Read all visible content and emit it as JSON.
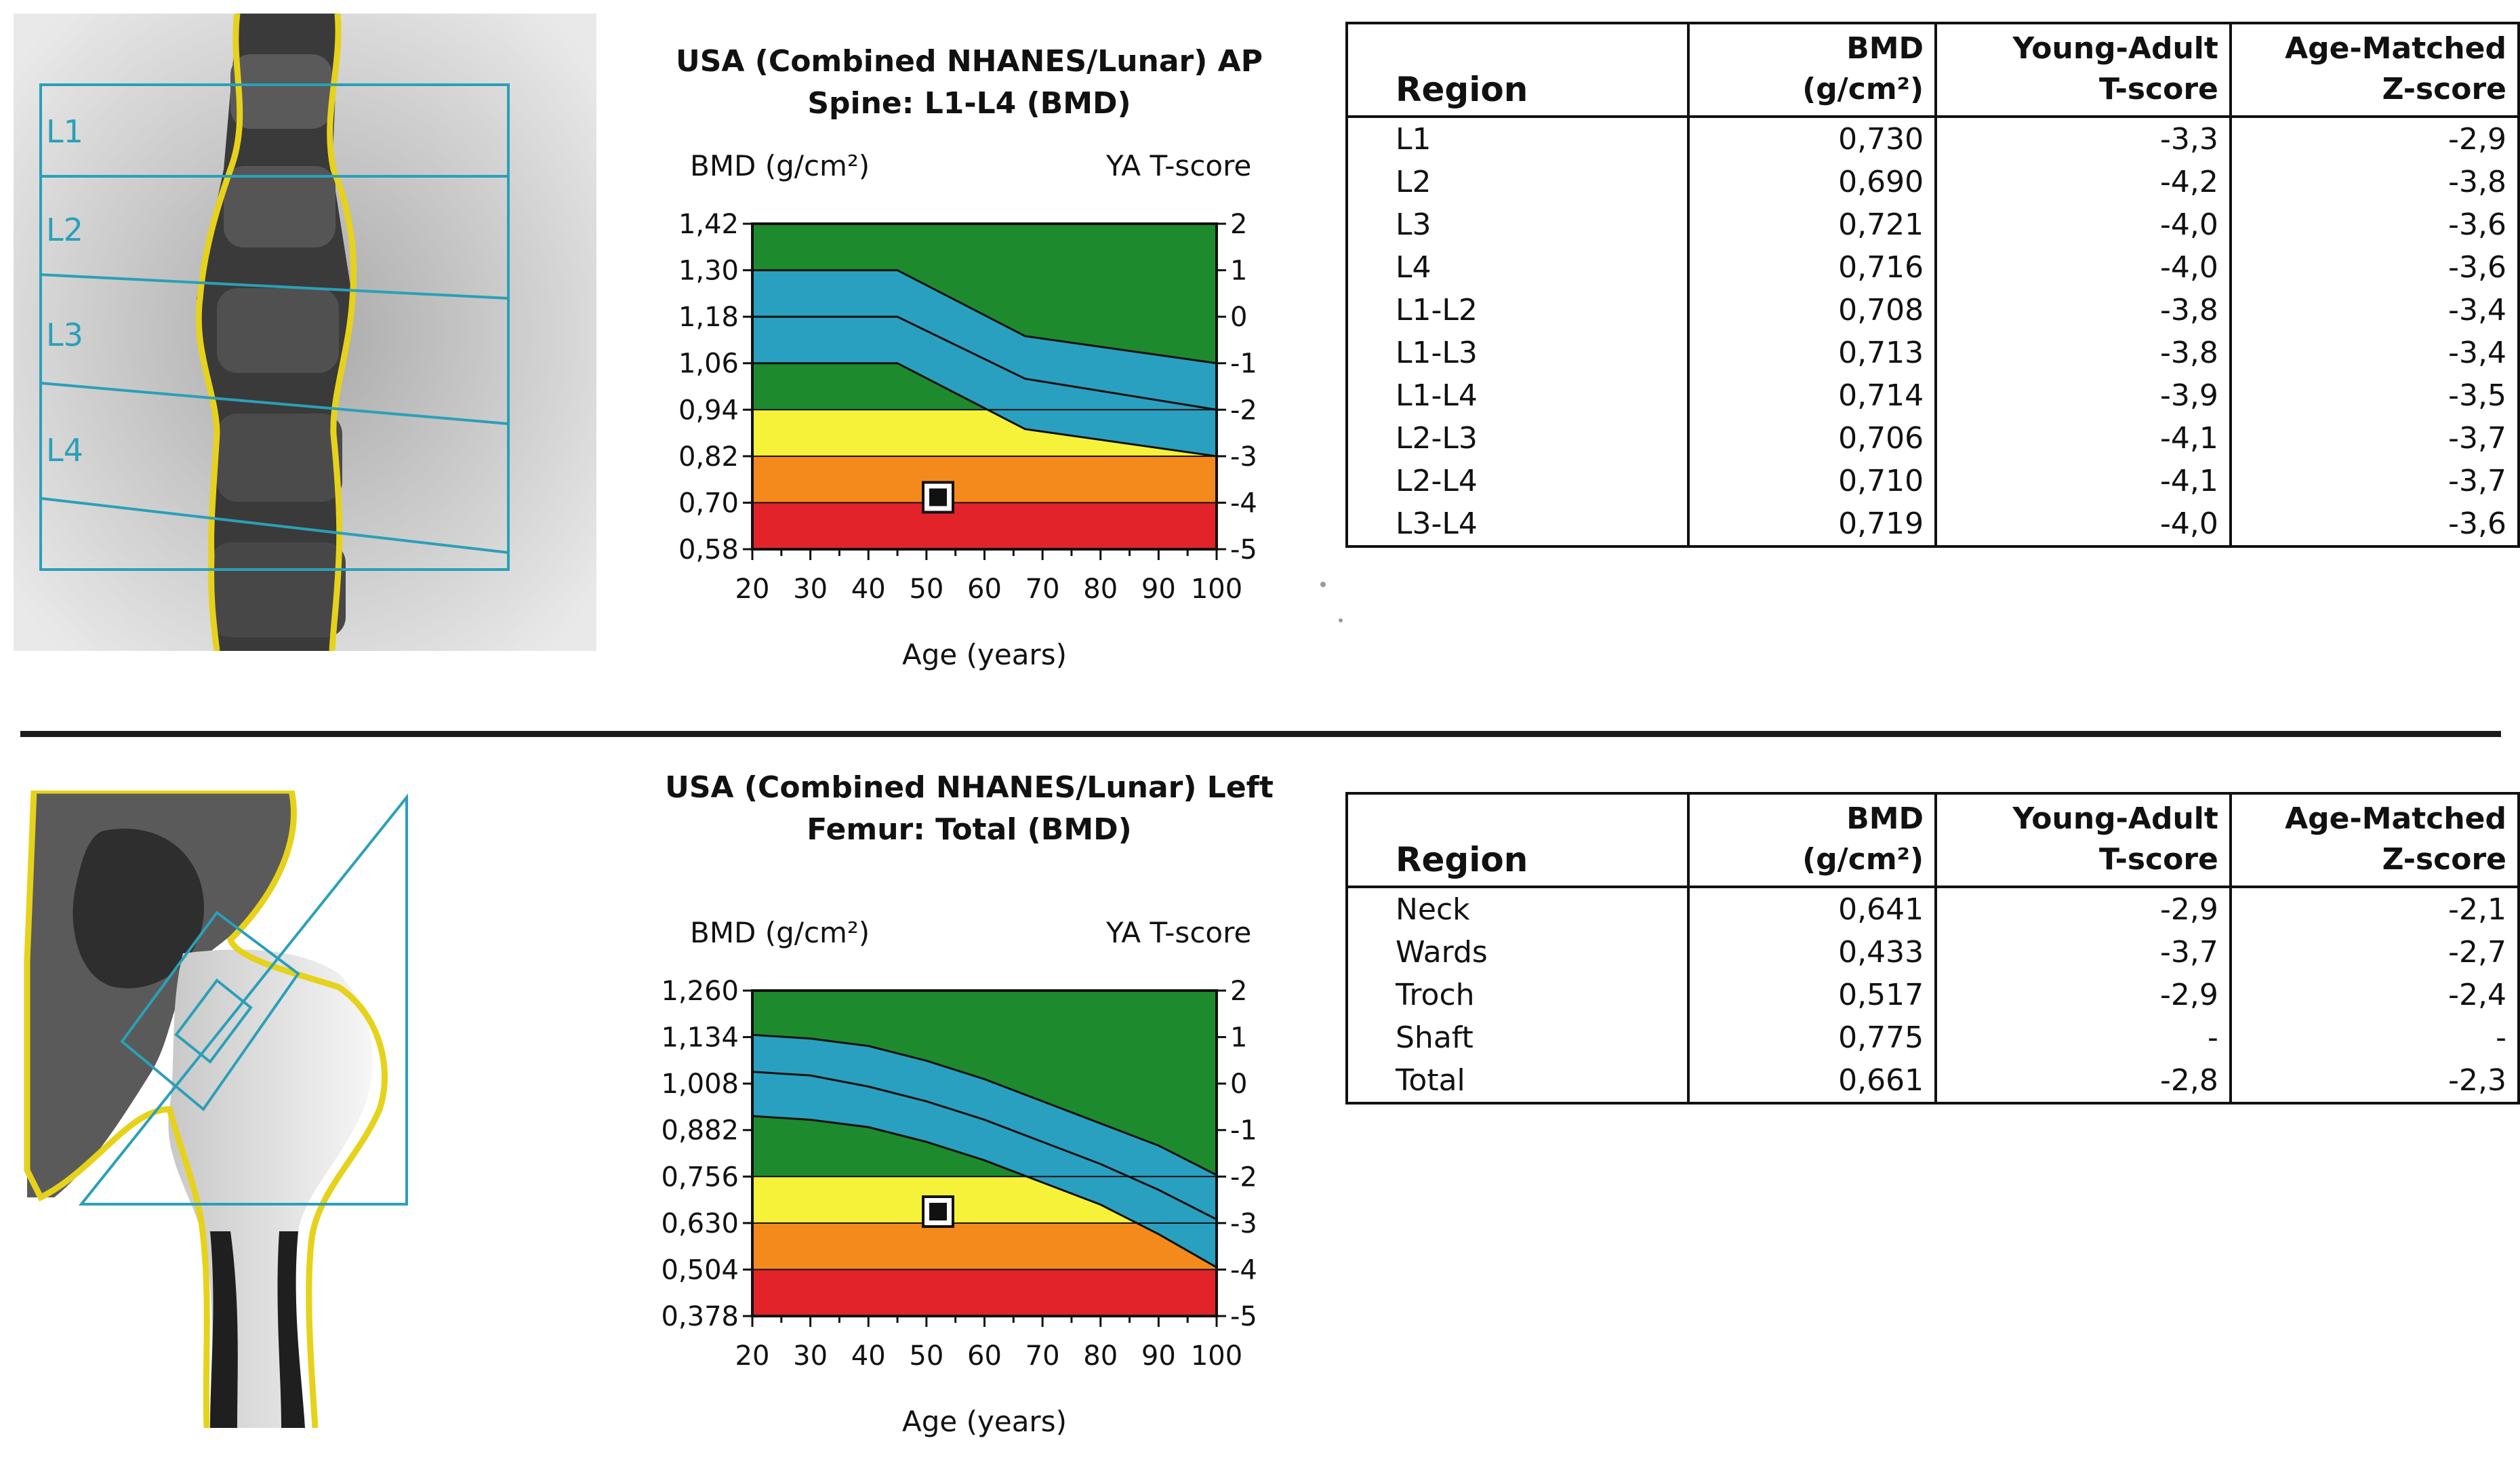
{
  "colors": {
    "green": "#1e8a2e",
    "blue": "#2aa0c0",
    "yellow": "#f6f23a",
    "orange": "#f58a1c",
    "red": "#e2232a",
    "roi": "#2aa0b8",
    "outline": "#e6d21a"
  },
  "spine": {
    "title_line1": "USA (Combined NHANES/Lunar) AP",
    "title_line2": "Spine: L1-L4 (BMD)",
    "left_axis_label": "BMD (g/cm²)",
    "right_axis_label": "YA T-score",
    "x_axis_label": "Age (years)",
    "roi_labels": [
      "L1",
      "L2",
      "L3",
      "L4"
    ],
    "table": {
      "headers": {
        "region": "Region",
        "bmd_line1": "BMD",
        "bmd_line2": "(g/cm²)",
        "t_line1": "Young-Adult",
        "t_line2": "T-score",
        "z_line1": "Age-Matched",
        "z_line2": "Z-score"
      },
      "rows": [
        {
          "region": "L1",
          "bmd": "0,730",
          "t": "-3,3",
          "z": "-2,9"
        },
        {
          "region": "L2",
          "bmd": "0,690",
          "t": "-4,2",
          "z": "-3,8"
        },
        {
          "region": "L3",
          "bmd": "0,721",
          "t": "-4,0",
          "z": "-3,6"
        },
        {
          "region": "L4",
          "bmd": "0,716",
          "t": "-4,0",
          "z": "-3,6"
        },
        {
          "region": "L1-L2",
          "bmd": "0,708",
          "t": "-3,8",
          "z": "-3,4"
        },
        {
          "region": "L1-L3",
          "bmd": "0,713",
          "t": "-3,8",
          "z": "-3,4"
        },
        {
          "region": "L1-L4",
          "bmd": "0,714",
          "t": "-3,9",
          "z": "-3,5"
        },
        {
          "region": "L2-L3",
          "bmd": "0,706",
          "t": "-4,1",
          "z": "-3,7"
        },
        {
          "region": "L2-L4",
          "bmd": "0,710",
          "t": "-4,1",
          "z": "-3,7"
        },
        {
          "region": "L3-L4",
          "bmd": "0,719",
          "t": "-4,0",
          "z": "-3,6"
        }
      ]
    }
  },
  "femur": {
    "title_line1": "USA (Combined NHANES/Lunar) Left",
    "title_line2": "Femur: Total (BMD)",
    "left_axis_label": "BMD (g/cm²)",
    "right_axis_label": "YA T-score",
    "x_axis_label": "Age (years)",
    "table": {
      "headers": {
        "region": "Region",
        "bmd_line1": "BMD",
        "bmd_line2": "(g/cm²)",
        "t_line1": "Young-Adult",
        "t_line2": "T-score",
        "z_line1": "Age-Matched",
        "z_line2": "Z-score"
      },
      "rows": [
        {
          "region": "Neck",
          "bmd": "0,641",
          "t": "-2,9",
          "z": "-2,1"
        },
        {
          "region": "Wards",
          "bmd": "0,433",
          "t": "-3,7",
          "z": "-2,7"
        },
        {
          "region": "Troch",
          "bmd": "0,517",
          "t": "-2,9",
          "z": "-2,4"
        },
        {
          "region": "Shaft",
          "bmd": "0,775",
          "t": "-",
          "z": "-"
        },
        {
          "region": "Total",
          "bmd": "0,661",
          "t": "-2,8",
          "z": "-2,3"
        }
      ]
    }
  },
  "chart_data": [
    {
      "id": "spine",
      "type": "area",
      "title": "USA (Combined NHANES/Lunar) AP Spine: L1-L4 (BMD)",
      "xlabel": "Age (years)",
      "ylabel": "BMD (g/cm²)",
      "y2label": "YA T-score",
      "xlim": [
        20,
        100
      ],
      "ylim": [
        0.58,
        1.42
      ],
      "x_ticks": [
        20,
        30,
        40,
        50,
        60,
        70,
        80,
        90,
        100
      ],
      "y_ticks": [
        "0,58",
        "0,70",
        "0,82",
        "0,94",
        "1,06",
        "1,18",
        "1,30",
        "1,42"
      ],
      "y2_ticks": [
        "2",
        "1",
        "0",
        "-1",
        "-2",
        "-3",
        "-4",
        "-5"
      ],
      "bands": [
        {
          "name": "red",
          "from": 0.58,
          "to": 0.7
        },
        {
          "name": "orange",
          "from": 0.7,
          "to": 0.82
        },
        {
          "name": "yellow",
          "from": 0.82,
          "to": 0.94
        },
        {
          "name": "green",
          "from": 0.94,
          "to": 1.42
        }
      ],
      "reference_curves": {
        "x": [
          20,
          45,
          67,
          100
        ],
        "upper": [
          1.3,
          1.3,
          1.13,
          1.06
        ],
        "mean": [
          1.18,
          1.18,
          1.02,
          0.94
        ],
        "lower": [
          1.06,
          1.06,
          0.89,
          0.82
        ]
      },
      "patient": {
        "age": 52,
        "bmd": 0.714
      }
    },
    {
      "id": "femur",
      "type": "area",
      "title": "USA (Combined NHANES/Lunar) Left Femur: Total (BMD)",
      "xlabel": "Age (years)",
      "ylabel": "BMD (g/cm²)",
      "y2label": "YA T-score",
      "xlim": [
        20,
        100
      ],
      "ylim": [
        0.378,
        1.26
      ],
      "x_ticks": [
        20,
        30,
        40,
        50,
        60,
        70,
        80,
        90,
        100
      ],
      "y_ticks": [
        "0,378",
        "0,504",
        "0,630",
        "0,756",
        "0,882",
        "1,008",
        "1,134",
        "1,260"
      ],
      "y2_ticks": [
        "2",
        "1",
        "0",
        "-1",
        "-2",
        "-3",
        "-4",
        "-5"
      ],
      "bands": [
        {
          "name": "red",
          "from": 0.378,
          "to": 0.504
        },
        {
          "name": "orange",
          "from": 0.504,
          "to": 0.63
        },
        {
          "name": "yellow",
          "from": 0.63,
          "to": 0.756
        },
        {
          "name": "green",
          "from": 0.756,
          "to": 1.26
        }
      ],
      "reference_curves": {
        "x": [
          20,
          30,
          40,
          50,
          60,
          70,
          80,
          90,
          100
        ],
        "upper": [
          1.14,
          1.13,
          1.11,
          1.07,
          1.02,
          0.96,
          0.9,
          0.84,
          0.76
        ],
        "mean": [
          1.04,
          1.03,
          1.0,
          0.96,
          0.91,
          0.85,
          0.79,
          0.72,
          0.64
        ],
        "lower": [
          0.92,
          0.91,
          0.89,
          0.85,
          0.8,
          0.74,
          0.68,
          0.6,
          0.51
        ]
      },
      "patient": {
        "age": 52,
        "bmd": 0.661
      }
    }
  ]
}
